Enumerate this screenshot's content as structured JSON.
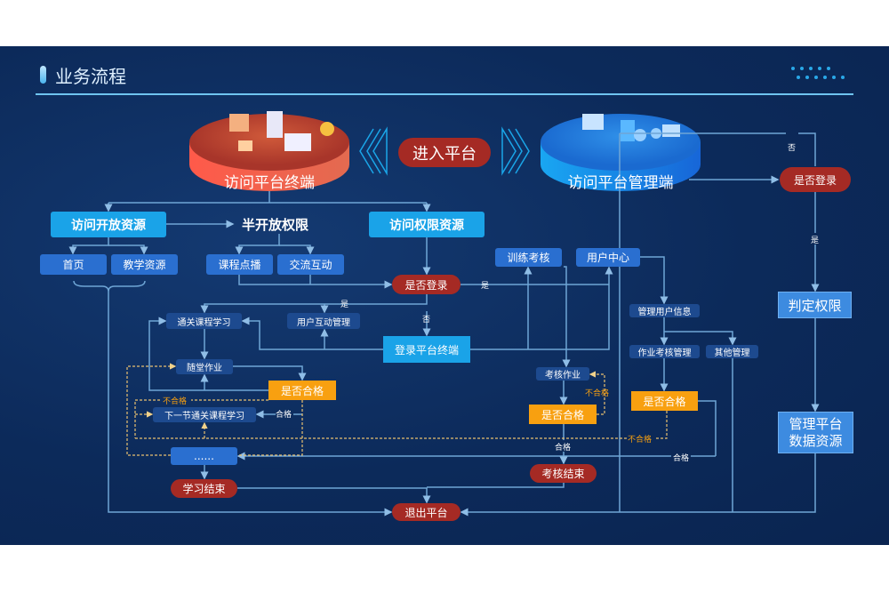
{
  "header": {
    "title": "业务流程"
  },
  "colors": {
    "background": "#0c2a5a",
    "primary": "#1aa3e8",
    "node": "#2a6fd0",
    "decision": "#a52a24",
    "check": "#f8a010",
    "line": "#6fa6d6"
  },
  "top": {
    "terminal": "访问平台终端",
    "enter": "进入平台",
    "admin": "访问平台管理端"
  },
  "left": {
    "open": "访问开放资源",
    "half": "半开放权限",
    "auth": "访问权限资源",
    "home": "首页",
    "teach": "教学资源",
    "vod": "课程点播",
    "comm": "交流互动",
    "login_q": "是否登录",
    "yes": "是",
    "no": "否",
    "login": "登录平台终端",
    "course": "通关课程学习",
    "interact": "用户互动管理",
    "homework": "随堂作业",
    "pass_q": "是否合格",
    "fail": "不合格",
    "pass": "合格",
    "next": "下一节通关课程学习",
    "more": "......",
    "study_end": "学习结束",
    "exit": "退出平台"
  },
  "middle": {
    "train": "训练考核",
    "user_center": "用户中心",
    "exam_work": "考核作业",
    "pass_q": "是否合格",
    "fail": "不合格",
    "pass": "合格",
    "exam_end": "考核结束"
  },
  "admin": {
    "user_info": "管理用户信息",
    "work_mgmt": "作业考核管理",
    "other": "其他管理",
    "pass_q": "是否合格",
    "fail": "不合格",
    "pass": "合格"
  },
  "right": {
    "login_q": "是否登录",
    "no": "否",
    "yes": "是",
    "perm": "判定权限",
    "data1": "管理平台",
    "data2": "数据资源"
  }
}
